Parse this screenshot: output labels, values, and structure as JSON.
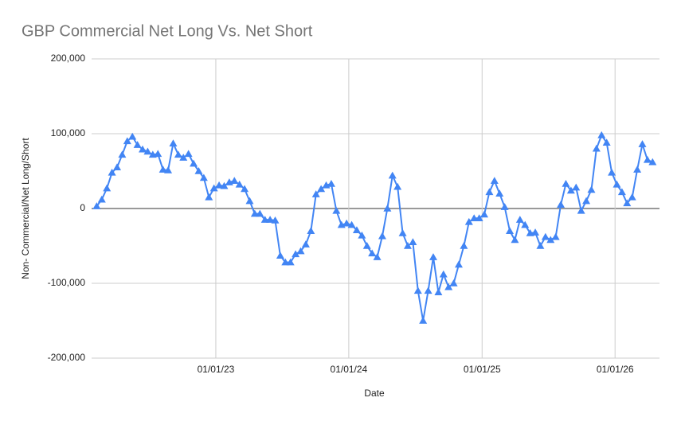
{
  "chart_data": {
    "type": "line",
    "title": "GBP Commercial Net Long Vs. Net Short",
    "x_label": "Date",
    "y_label": "Non- Commercial/Net Long/Short",
    "x": [
      "2022-02-08",
      "2022-02-22",
      "2022-03-08",
      "2022-03-22",
      "2022-04-05",
      "2022-04-19",
      "2022-05-03",
      "2022-05-17",
      "2022-05-31",
      "2022-06-14",
      "2022-06-28",
      "2022-07-12",
      "2022-07-26",
      "2022-08-09",
      "2022-08-23",
      "2022-09-06",
      "2022-09-20",
      "2022-10-04",
      "2022-10-18",
      "2022-11-01",
      "2022-11-15",
      "2022-11-29",
      "2022-12-13",
      "2022-12-27",
      "2023-01-10",
      "2023-01-24",
      "2023-02-07",
      "2023-02-21",
      "2023-03-07",
      "2023-03-21",
      "2023-04-04",
      "2023-04-18",
      "2023-05-02",
      "2023-05-16",
      "2023-05-30",
      "2023-06-13",
      "2023-06-27",
      "2023-07-11",
      "2023-07-25",
      "2023-08-08",
      "2023-08-22",
      "2023-09-05",
      "2023-09-19",
      "2023-10-03",
      "2023-10-17",
      "2023-10-31",
      "2023-11-14",
      "2023-11-28",
      "2023-12-12",
      "2023-12-26",
      "2024-01-09",
      "2024-01-23",
      "2024-02-06",
      "2024-02-20",
      "2024-03-05",
      "2024-03-19",
      "2024-04-02",
      "2024-04-16",
      "2024-04-30",
      "2024-05-14",
      "2024-05-28",
      "2024-06-11",
      "2024-06-25",
      "2024-07-09",
      "2024-07-23",
      "2024-08-06",
      "2024-08-20",
      "2024-09-03",
      "2024-09-17",
      "2024-10-01",
      "2024-10-15",
      "2024-10-29",
      "2024-11-12",
      "2024-11-26",
      "2024-12-10",
      "2024-12-24",
      "2025-01-07",
      "2025-01-21",
      "2025-02-04",
      "2025-02-18",
      "2025-03-04",
      "2025-03-18",
      "2025-04-01",
      "2025-04-15",
      "2025-04-29",
      "2025-05-13",
      "2025-05-27",
      "2025-06-10",
      "2025-06-24",
      "2025-07-08",
      "2025-07-22",
      "2025-08-05",
      "2025-08-19",
      "2025-09-02",
      "2025-09-16",
      "2025-09-30",
      "2025-10-14",
      "2025-10-28",
      "2025-11-11",
      "2025-11-25",
      "2025-12-09",
      "2025-12-23",
      "2026-01-06",
      "2026-01-20",
      "2026-02-03",
      "2026-02-17",
      "2026-03-03",
      "2026-03-17",
      "2026-03-31",
      "2026-04-14"
    ],
    "series": [
      {
        "name": "Non- Commercial/Net Long/Short",
        "color": "#4285f4",
        "values": [
          3000,
          12000,
          27000,
          48000,
          55000,
          72000,
          90000,
          96000,
          85000,
          79000,
          76000,
          72000,
          73000,
          52000,
          51000,
          87000,
          72000,
          68000,
          73000,
          60000,
          50000,
          41000,
          15000,
          27000,
          31000,
          30000,
          35000,
          37000,
          32000,
          26000,
          10000,
          -7000,
          -7000,
          -15000,
          -15000,
          -16000,
          -63000,
          -72000,
          -72000,
          -61000,
          -57000,
          -48000,
          -30000,
          19000,
          26000,
          31000,
          33000,
          -3000,
          -22000,
          -20000,
          -22000,
          -29000,
          -36000,
          -50000,
          -60000,
          -65000,
          -37000,
          0,
          44000,
          29000,
          -33000,
          -50000,
          -45000,
          -110000,
          -150000,
          -110000,
          -65000,
          -112000,
          -88000,
          -105000,
          -100000,
          -75000,
          -50000,
          -18000,
          -13000,
          -13000,
          -8000,
          22000,
          37000,
          20000,
          2000,
          -30000,
          -42000,
          -15000,
          -22000,
          -33000,
          -32000,
          -50000,
          -38000,
          -42000,
          -38000,
          5000,
          33000,
          24000,
          28000,
          -3000,
          10000,
          25000,
          80000,
          98000,
          88000,
          48000,
          32000,
          22000,
          7000,
          15000,
          52000,
          86000,
          65000,
          62000
        ]
      }
    ],
    "xlim": [
      "2022-01-25",
      "2026-05-03"
    ],
    "xticks": [
      {
        "value": "2023-01-01",
        "label": "01/01/23"
      },
      {
        "value": "2024-01-01",
        "label": "01/01/24"
      },
      {
        "value": "2025-01-01",
        "label": "01/01/25"
      },
      {
        "value": "2026-01-01",
        "label": "01/01/26"
      }
    ],
    "ylim": [
      -200000,
      200000
    ],
    "yticks": [
      {
        "value": -200000,
        "label": "-200,000"
      },
      {
        "value": -100000,
        "label": "-100,000"
      },
      0,
      {
        "value": 100000,
        "label": "100,000"
      },
      {
        "value": 200000,
        "label": "200,000"
      }
    ],
    "grid": true
  }
}
